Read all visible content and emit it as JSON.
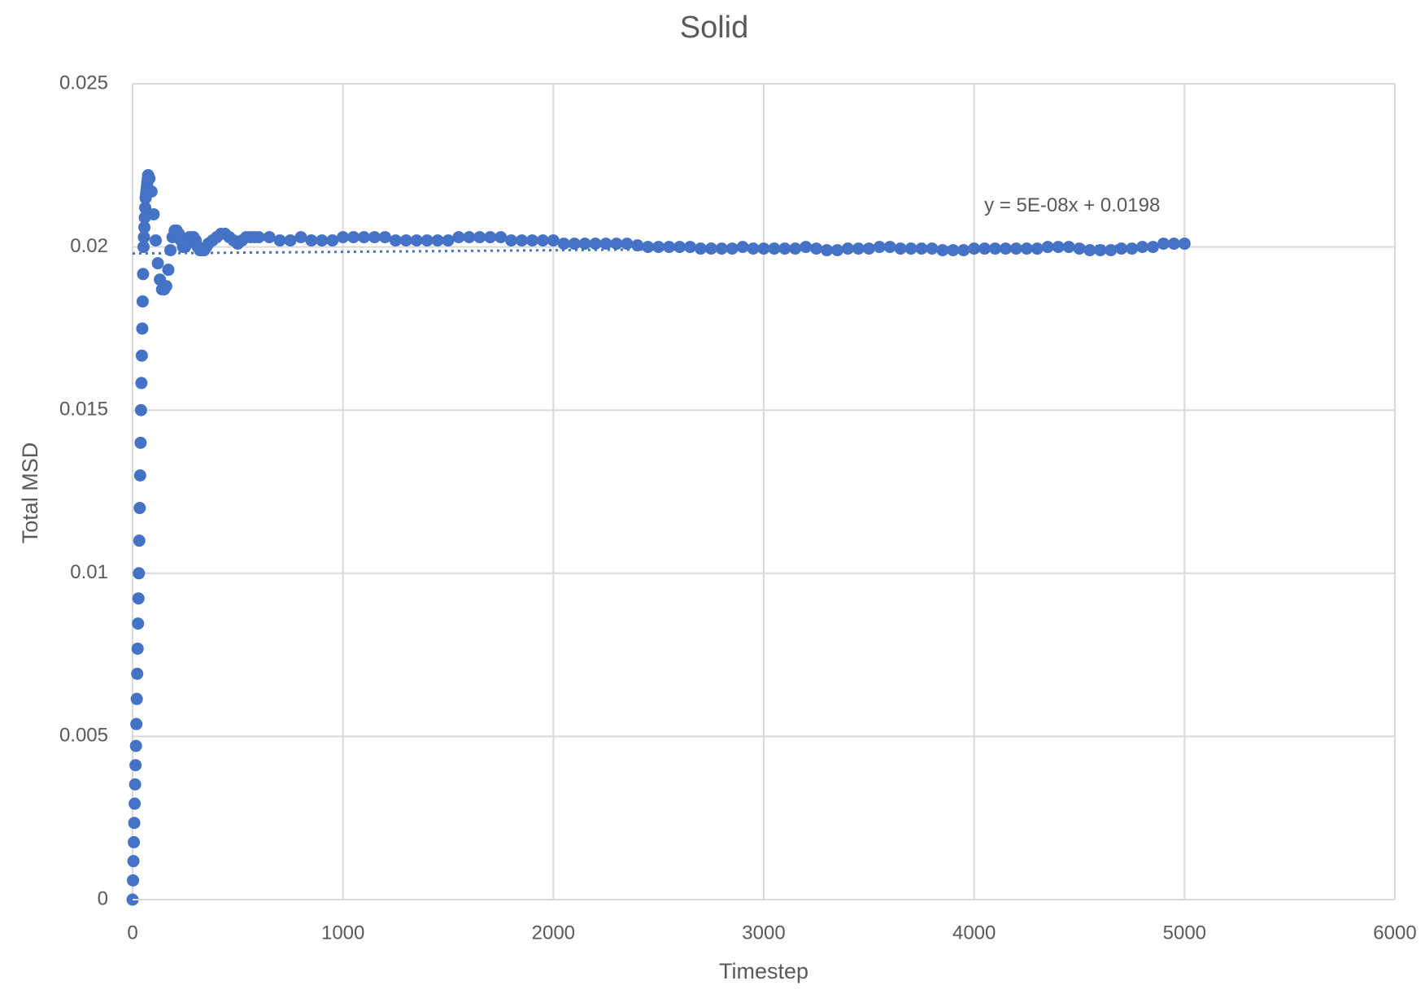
{
  "chart_data": {
    "type": "scatter",
    "title": "Solid",
    "x_label": "Timestep",
    "y_label": "Total MSD",
    "xlim": [
      0,
      6000
    ],
    "xticks": [
      0,
      1000,
      2000,
      3000,
      4000,
      5000,
      6000
    ],
    "ylim": [
      0,
      0.025
    ],
    "yticks": [
      0,
      0.005,
      0.01,
      0.015,
      0.02,
      0.025
    ],
    "grid": true,
    "x": [
      0,
      2,
      4,
      6,
      8,
      10,
      12,
      14,
      16,
      18,
      20,
      22,
      24,
      26,
      28,
      30,
      32,
      34,
      36,
      38,
      40,
      42,
      44,
      46,
      48,
      50,
      52,
      54,
      56,
      58,
      60,
      62,
      64,
      66,
      68,
      70,
      72,
      74,
      80,
      90,
      100,
      110,
      120,
      130,
      140,
      150,
      160,
      170,
      180,
      190,
      200,
      210,
      220,
      230,
      240,
      250,
      260,
      270,
      280,
      290,
      300,
      310,
      320,
      330,
      340,
      350,
      360,
      380,
      400,
      420,
      440,
      460,
      480,
      500,
      520,
      540,
      560,
      580,
      600,
      650,
      700,
      750,
      800,
      850,
      900,
      950,
      1000,
      1050,
      1100,
      1150,
      1200,
      1250,
      1300,
      1350,
      1400,
      1450,
      1500,
      1550,
      1600,
      1650,
      1700,
      1750,
      1800,
      1850,
      1900,
      1950,
      2000,
      2050,
      2100,
      2150,
      2200,
      2250,
      2300,
      2350,
      2400,
      2450,
      2500,
      2550,
      2600,
      2650,
      2700,
      2750,
      2800,
      2850,
      2900,
      2950,
      3000,
      3050,
      3100,
      3150,
      3200,
      3250,
      3300,
      3350,
      3400,
      3450,
      3500,
      3550,
      3600,
      3650,
      3700,
      3750,
      3800,
      3850,
      3900,
      3950,
      4000,
      4050,
      4100,
      4150,
      4200,
      4250,
      4300,
      4350,
      4400,
      4450,
      4500,
      4550,
      4600,
      4650,
      4700,
      4750,
      4800,
      4850,
      4900,
      4950,
      5000
    ],
    "series": [
      {
        "name": "Total MSD",
        "color": "#4472c4",
        "values": [
          0,
          0.00059,
          0.00118,
          0.00176,
          0.00235,
          0.00294,
          0.00353,
          0.00412,
          0.00471,
          0.00538,
          0.00615,
          0.00692,
          0.00769,
          0.00846,
          0.00923,
          0.01,
          0.011,
          0.012,
          0.013,
          0.014,
          0.015,
          0.01583,
          0.01667,
          0.0175,
          0.01833,
          0.01917,
          0.02,
          0.0203,
          0.0206,
          0.0209,
          0.0212,
          0.0215,
          0.02162,
          0.02173,
          0.02185,
          0.02197,
          0.02208,
          0.0222,
          0.0221,
          0.0217,
          0.021,
          0.0202,
          0.0195,
          0.019,
          0.0187,
          0.0187,
          0.0188,
          0.0193,
          0.0199,
          0.0203,
          0.0205,
          0.0205,
          0.0204,
          0.0202,
          0.02,
          0.02,
          0.0201,
          0.0203,
          0.0203,
          0.0203,
          0.0202,
          0.02,
          0.0199,
          0.0199,
          0.0199,
          0.02,
          0.0201,
          0.0202,
          0.0203,
          0.0204,
          0.0204,
          0.0203,
          0.0202,
          0.0201,
          0.0202,
          0.0203,
          0.0203,
          0.0203,
          0.0203,
          0.0203,
          0.0202,
          0.0202,
          0.0203,
          0.0202,
          0.0202,
          0.0202,
          0.0203,
          0.0203,
          0.0203,
          0.0203,
          0.0203,
          0.0202,
          0.0202,
          0.0202,
          0.0202,
          0.0202,
          0.0202,
          0.0203,
          0.0203,
          0.0203,
          0.0203,
          0.0203,
          0.0202,
          0.0202,
          0.0202,
          0.0202,
          0.0202,
          0.0201,
          0.0201,
          0.0201,
          0.0201,
          0.0201,
          0.0201,
          0.0201,
          0.02005,
          0.02,
          0.02,
          0.02,
          0.02,
          0.02,
          0.01995,
          0.01995,
          0.01995,
          0.01995,
          0.02,
          0.01995,
          0.01995,
          0.01995,
          0.01995,
          0.01995,
          0.02,
          0.01995,
          0.0199,
          0.0199,
          0.01995,
          0.01995,
          0.01995,
          0.02,
          0.02,
          0.01995,
          0.01995,
          0.01995,
          0.01995,
          0.0199,
          0.0199,
          0.0199,
          0.01995,
          0.01995,
          0.01995,
          0.01995,
          0.01995,
          0.01995,
          0.01995,
          0.02,
          0.02,
          0.02,
          0.01995,
          0.0199,
          0.0199,
          0.0199,
          0.01995,
          0.01995,
          0.02,
          0.02,
          0.0201,
          0.0201,
          0.0201
        ]
      }
    ],
    "trendline": {
      "equation": "y = 5E-08x + 0.0198",
      "slope": 5e-08,
      "intercept": 0.0198
    }
  }
}
